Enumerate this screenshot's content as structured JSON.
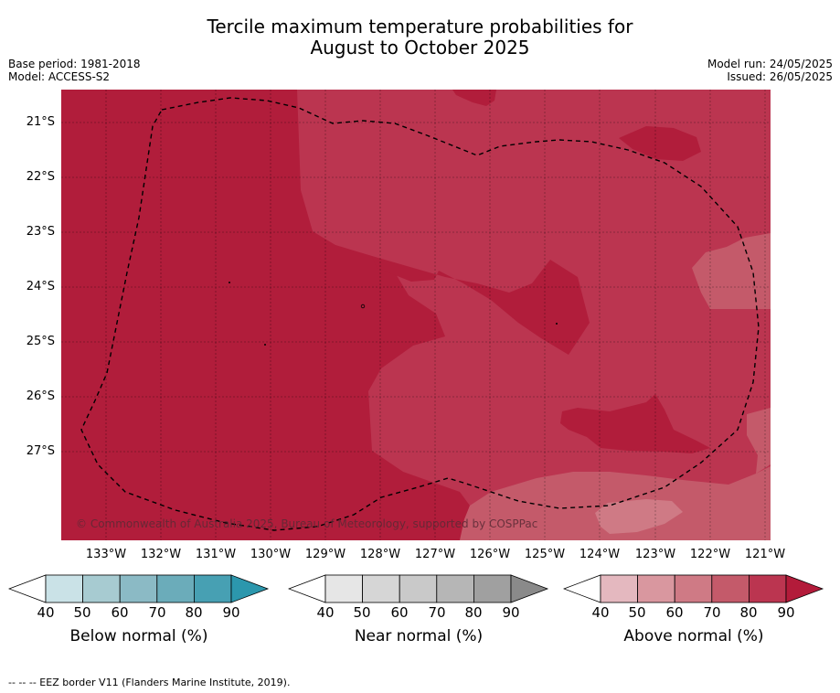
{
  "title_line1": "Tercile maximum temperature probabilities for",
  "title_line2": "August to October 2025",
  "meta_left": {
    "base_period": "Base period: 1981-2018",
    "model": "Model: ACCESS-S2"
  },
  "meta_right": {
    "model_run": "Model run: 24/05/2025",
    "issued": "Issued: 26/05/2025"
  },
  "copyright": "© Commonwealth of Australia 2025, Bureau of Meteorology, supported by COSPPac",
  "lat_labels": [
    "21°S",
    "22°S",
    "23°S",
    "24°S",
    "25°S",
    "26°S",
    "27°S"
  ],
  "lon_labels": [
    "133°W",
    "132°W",
    "131°W",
    "130°W",
    "129°W",
    "128°W",
    "127°W",
    "126°W",
    "125°W",
    "124°W",
    "123°W",
    "122°W",
    "121°W"
  ],
  "colorbars": [
    {
      "label": "Below normal (%)",
      "ticks": [
        "40",
        "50",
        "60",
        "70",
        "80",
        "90"
      ],
      "colors": [
        "#ffffff",
        "#cae2e7",
        "#a7cbd1",
        "#8bbac5",
        "#6bacba",
        "#47a0b3",
        "#2c97ad"
      ]
    },
    {
      "label": "Near normal (%)",
      "ticks": [
        "40",
        "50",
        "60",
        "70",
        "80",
        "90"
      ],
      "colors": [
        "#ffffff",
        "#e6e6e6",
        "#d6d6d6",
        "#c9c9c9",
        "#b6b6b6",
        "#a0a0a0",
        "#8a8a8a"
      ]
    },
    {
      "label": "Above normal (%)",
      "ticks": [
        "40",
        "50",
        "60",
        "70",
        "80",
        "90"
      ],
      "colors": [
        "#ffffff",
        "#e4b8bf",
        "#d9979f",
        "#cf7a85",
        "#c45a6a",
        "#bb3550",
        "#b31b3a"
      ]
    }
  ],
  "footer": "--  --  -- EEZ border V11 (Flanders Marine Institute, 2019).",
  "map_colors": {
    "dark": "#b11d3b",
    "mid": "#bb3550",
    "light": "#c45a6a",
    "lighter": "#cf7a85"
  }
}
